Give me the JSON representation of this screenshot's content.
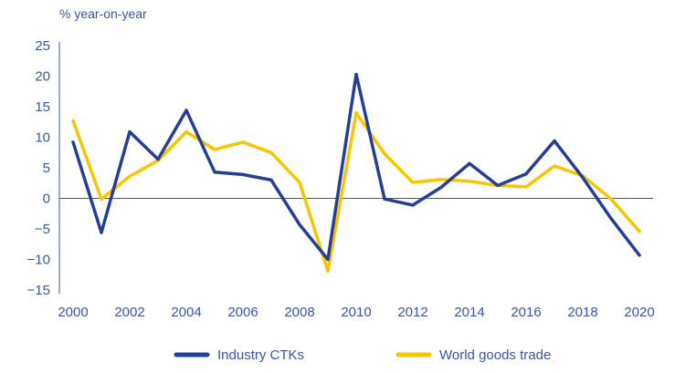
{
  "chart_data": {
    "type": "line",
    "unit_label": "% year-on-year",
    "x": [
      2000,
      2001,
      2002,
      2003,
      2004,
      2005,
      2006,
      2007,
      2008,
      2009,
      2010,
      2011,
      2012,
      2013,
      2014,
      2015,
      2016,
      2017,
      2018,
      2019,
      2020
    ],
    "x_tick_labels": [
      "2000",
      "2002",
      "2004",
      "2006",
      "2008",
      "2010",
      "2012",
      "2014",
      "2016",
      "2018",
      "2020"
    ],
    "x_tick_values": [
      2000,
      2002,
      2004,
      2006,
      2008,
      2010,
      2012,
      2014,
      2016,
      2018,
      2020
    ],
    "y_tick_labels": [
      "25",
      "20",
      "15",
      "10",
      "5",
      "0",
      "−5",
      "−10",
      "−15"
    ],
    "y_tick_values": [
      25,
      20,
      15,
      10,
      5,
      0,
      -5,
      -10,
      -15
    ],
    "ylim": [
      -15,
      25
    ],
    "xlim": [
      2000,
      2020
    ],
    "grid": false,
    "zero_line": true,
    "legend_position": "bottom-center",
    "series": [
      {
        "name": "Industry CTKs",
        "color": "#263f95",
        "values": [
          9.2,
          -5.6,
          10.9,
          6.4,
          14.4,
          4.3,
          3.9,
          3.0,
          -4.3,
          -10.0,
          20.3,
          -0.1,
          -1.1,
          1.8,
          5.7,
          2.1,
          4.0,
          9.4,
          3.4,
          -3.3,
          -9.3
        ]
      },
      {
        "name": "World goods trade",
        "color": "#f7c600",
        "values": [
          12.7,
          -0.1,
          3.6,
          6.2,
          10.9,
          8.0,
          9.2,
          7.5,
          2.6,
          -11.9,
          14.0,
          7.3,
          2.6,
          3.1,
          2.8,
          2.1,
          1.9,
          5.3,
          3.7,
          -0.1,
          -5.4
        ]
      }
    ]
  }
}
